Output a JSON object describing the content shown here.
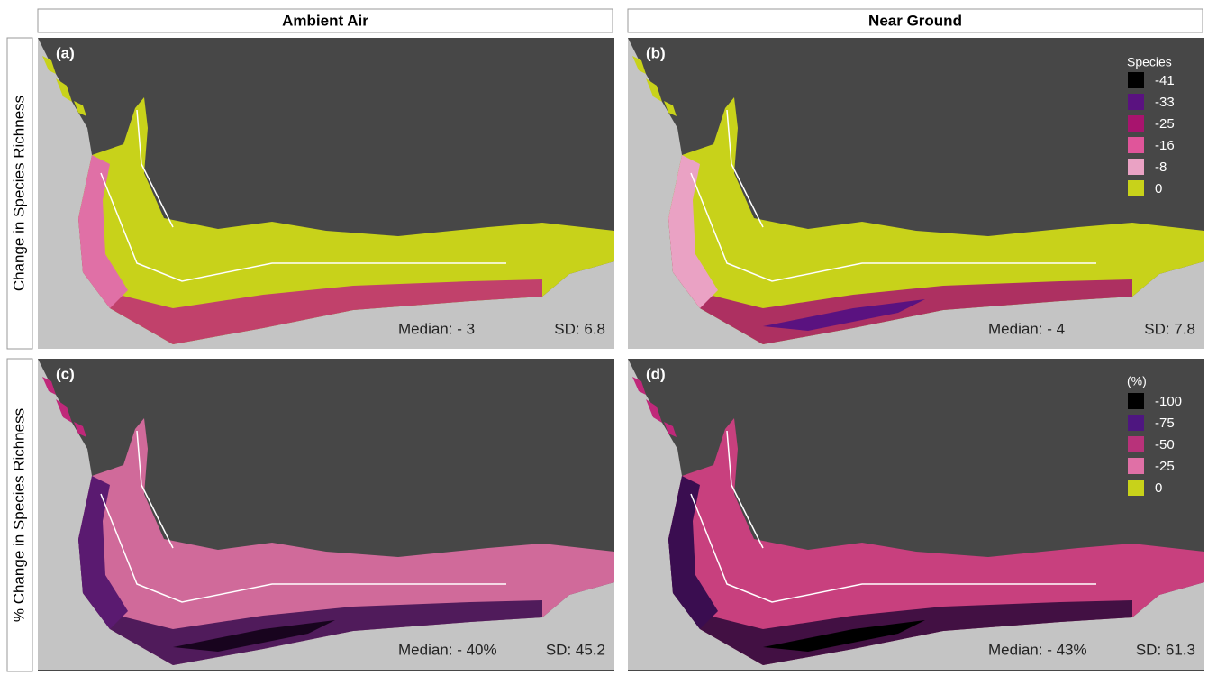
{
  "columns": [
    "Ambient Air",
    "Near Ground"
  ],
  "rows": [
    "Change in Species Richness",
    "% Change in Species Richness"
  ],
  "panels": [
    {
      "label": "(a)",
      "median": "Median: - 3",
      "sd": "SD: 6.8"
    },
    {
      "label": "(b)",
      "median": "Median: - 4",
      "sd": "SD: 7.8",
      "legend": {
        "title": "Species",
        "entries": [
          {
            "label": "-41",
            "color": "#000000"
          },
          {
            "label": "-33",
            "color": "#5a1280"
          },
          {
            "label": "-25",
            "color": "#a8146e"
          },
          {
            "label": "-16",
            "color": "#e0559a"
          },
          {
            "label": "-8",
            "color": "#eaa2c4"
          },
          {
            "label": "0",
            "color": "#c8d21a"
          }
        ]
      }
    },
    {
      "label": "(c)",
      "median": "Median: - 40%",
      "sd": "SD: 45.2"
    },
    {
      "label": "(d)",
      "median": "Median: - 43%",
      "sd": "SD: 61.3",
      "legend": {
        "title": "(%)",
        "entries": [
          {
            "label": "-100",
            "color": "#000000"
          },
          {
            "label": "-75",
            "color": "#4e1680"
          },
          {
            "label": "-50",
            "color": "#b8327a"
          },
          {
            "label": "-25",
            "color": "#e070a6"
          },
          {
            "label": "0",
            "color": "#c8d21a"
          }
        ]
      }
    }
  ]
}
